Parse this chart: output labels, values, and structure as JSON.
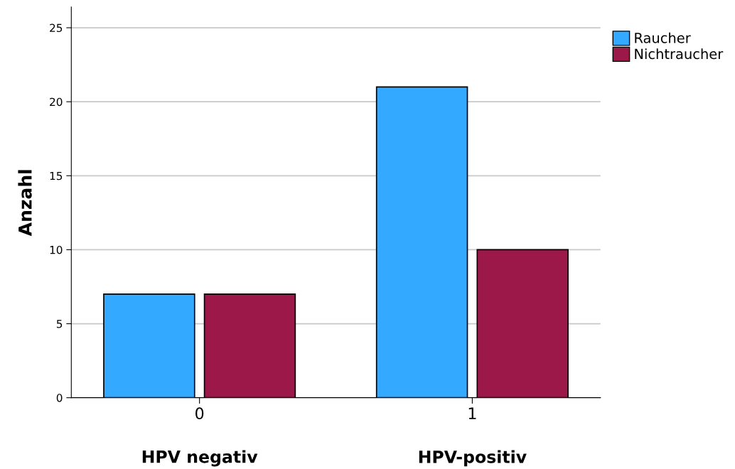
{
  "chart_data": {
    "type": "bar",
    "ylabel": "Anzahl",
    "categories": [
      "0",
      "1"
    ],
    "series": [
      {
        "name": "Raucher",
        "color": "#33aaff",
        "values": [
          7,
          21
        ]
      },
      {
        "name": "Nichtraucher",
        "color": "#9c1848",
        "values": [
          7,
          10
        ]
      }
    ],
    "annotations": [
      "HPV negativ",
      "HPV-positiv"
    ],
    "ylim": [
      0,
      26.4
    ],
    "yticks": [
      0,
      5,
      10,
      15,
      20,
      25
    ],
    "grid": "y",
    "legend": "top right"
  }
}
